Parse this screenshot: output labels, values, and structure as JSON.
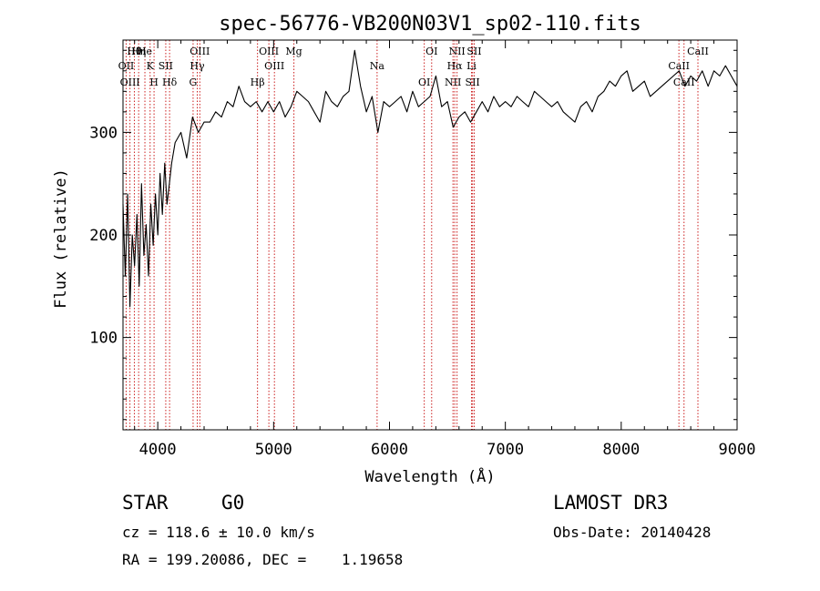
{
  "chart_data": {
    "type": "line",
    "title": "spec-56776-VB200N03V1_sp02-110.fits",
    "xlabel": "Wavelength (Å)",
    "ylabel": "Flux (relative)",
    "xlim": [
      3700,
      9000
    ],
    "ylim": [
      10,
      390
    ],
    "x_ticks": [
      4000,
      5000,
      6000,
      7000,
      8000,
      9000
    ],
    "y_ticks": [
      100,
      200,
      300
    ],
    "grid": false,
    "series": [
      {
        "name": "flux",
        "x": [
          3700,
          3720,
          3740,
          3760,
          3780,
          3800,
          3820,
          3840,
          3860,
          3880,
          3900,
          3920,
          3940,
          3960,
          3980,
          4000,
          4020,
          4040,
          4060,
          4080,
          4100,
          4120,
          4150,
          4200,
          4250,
          4300,
          4350,
          4400,
          4450,
          4500,
          4550,
          4600,
          4650,
          4700,
          4750,
          4800,
          4850,
          4900,
          4950,
          5000,
          5050,
          5100,
          5150,
          5200,
          5250,
          5300,
          5350,
          5400,
          5450,
          5500,
          5550,
          5600,
          5650,
          5700,
          5750,
          5800,
          5850,
          5900,
          5950,
          6000,
          6050,
          6100,
          6150,
          6200,
          6250,
          6300,
          6350,
          6400,
          6450,
          6500,
          6550,
          6600,
          6650,
          6700,
          6750,
          6800,
          6850,
          6900,
          6950,
          7000,
          7050,
          7100,
          7150,
          7200,
          7250,
          7300,
          7350,
          7400,
          7450,
          7500,
          7550,
          7600,
          7650,
          7700,
          7750,
          7800,
          7850,
          7900,
          7950,
          8000,
          8050,
          8100,
          8150,
          8200,
          8250,
          8300,
          8350,
          8400,
          8450,
          8500,
          8550,
          8600,
          8650,
          8700,
          8750,
          8800,
          8850,
          8900,
          8950,
          9000
        ],
        "y": [
          230,
          160,
          240,
          130,
          200,
          170,
          220,
          150,
          250,
          180,
          210,
          160,
          230,
          190,
          240,
          200,
          260,
          220,
          270,
          230,
          250,
          270,
          290,
          300,
          275,
          315,
          300,
          310,
          310,
          320,
          315,
          330,
          325,
          345,
          330,
          325,
          330,
          320,
          330,
          320,
          330,
          315,
          325,
          340,
          335,
          330,
          320,
          310,
          340,
          330,
          325,
          335,
          340,
          380,
          345,
          320,
          335,
          300,
          330,
          325,
          330,
          335,
          320,
          340,
          325,
          330,
          335,
          355,
          325,
          330,
          305,
          315,
          320,
          310,
          320,
          330,
          320,
          335,
          325,
          330,
          325,
          335,
          330,
          325,
          340,
          335,
          330,
          325,
          330,
          320,
          315,
          310,
          325,
          330,
          320,
          335,
          340,
          350,
          345,
          355,
          360,
          340,
          345,
          350,
          335,
          340,
          345,
          350,
          355,
          360,
          345,
          355,
          350,
          360,
          345,
          360,
          355,
          365,
          355,
          345
        ]
      }
    ],
    "lines": [
      {
        "name": "Hθ",
        "w": 3798
      },
      {
        "name": "OII",
        "w": 3727
      },
      {
        "name": "OIII",
        "w": 3760
      },
      {
        "name": "Hη",
        "w": 3835
      },
      {
        "name": "K",
        "w": 3934
      },
      {
        "name": "H",
        "w": 3968
      },
      {
        "name": "He",
        "w": 3889
      },
      {
        "name": "SII",
        "w": 4069
      },
      {
        "name": "Hδ",
        "w": 4102
      },
      {
        "name": "OIII",
        "w": 4363
      },
      {
        "name": "Hγ",
        "w": 4341
      },
      {
        "name": "G",
        "w": 4305
      },
      {
        "name": "OIII",
        "w": 4959
      },
      {
        "name": "OIII",
        "w": 5007
      },
      {
        "name": "Hβ",
        "w": 4861
      },
      {
        "name": "Mg",
        "w": 5175
      },
      {
        "name": "Na",
        "w": 5893
      },
      {
        "name": "OI",
        "w": 6300
      },
      {
        "name": "OI",
        "w": 6364
      },
      {
        "name": "Hα",
        "w": 6563
      },
      {
        "name": "NII",
        "w": 6548
      },
      {
        "name": "NII",
        "w": 6583
      },
      {
        "name": "Li",
        "w": 6708
      },
      {
        "name": "SII",
        "w": 6717
      },
      {
        "name": "SII",
        "w": 6731
      },
      {
        "name": "CaII",
        "w": 8498
      },
      {
        "name": "CaII",
        "w": 8542
      },
      {
        "name": "CaII",
        "w": 8662
      }
    ]
  },
  "info": {
    "class": "STAR",
    "subclass": "G0",
    "survey": "LAMOST DR3",
    "cz": "cz = 118.6 ± 10.0 km/s",
    "obs_date": "Obs-Date: 20140428",
    "radec": "RA = 199.20086, DEC =    1.19658"
  }
}
